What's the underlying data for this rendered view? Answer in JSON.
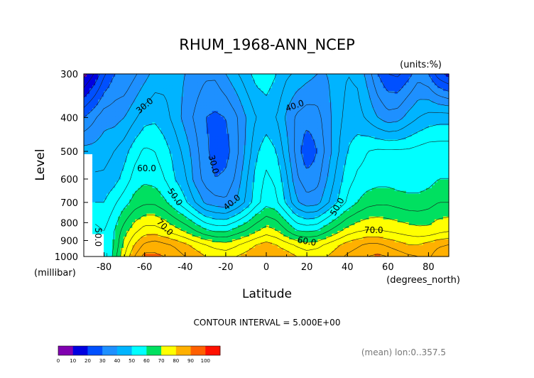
{
  "chart_data": {
    "type": "heatmap",
    "title": "RHUM_1968-ANN_NCEP",
    "units_label": "(units:%)",
    "xlabel": "Latitude",
    "x_unit_label": "(degrees_north)",
    "ylabel": "Level",
    "y_unit_label": "(millibar)",
    "xlim": [
      -90,
      90
    ],
    "ylim": [
      1000,
      300
    ],
    "x_ticks": [
      "-80",
      "-60",
      "-40",
      "-20",
      "0",
      "20",
      "40",
      "60",
      "80"
    ],
    "x_tick_values": [
      -80,
      -60,
      -40,
      -20,
      0,
      20,
      40,
      60,
      80
    ],
    "y_ticks": [
      "300",
      "400",
      "500",
      "600",
      "700",
      "800",
      "900",
      "1000"
    ],
    "y_tick_values": [
      300,
      400,
      500,
      600,
      700,
      800,
      900,
      1000
    ],
    "contour_interval_text": "CONTOUR INTERVAL = 5.000E+00",
    "footnote": "(mean) lon:0..357.5",
    "x": [
      -90,
      -85,
      -80,
      -75,
      -70,
      -65,
      -60,
      -55,
      -50,
      -45,
      -40,
      -35,
      -30,
      -25,
      -20,
      -15,
      -10,
      -5,
      0,
      5,
      10,
      15,
      20,
      25,
      30,
      35,
      40,
      45,
      50,
      55,
      60,
      65,
      70,
      75,
      80,
      85,
      90
    ],
    "levels": [
      1000,
      925,
      850,
      700,
      600,
      500,
      400,
      300
    ],
    "values": [
      [
        null,
        null,
        52,
        62,
        75,
        85,
        92,
        91,
        90,
        88,
        85,
        83,
        80,
        79,
        78,
        80,
        82,
        84,
        85,
        84,
        83,
        80,
        78,
        79,
        80,
        83,
        86,
        88,
        90,
        91,
        90,
        88,
        86,
        85,
        84,
        88,
        90
      ],
      [
        null,
        null,
        55,
        60,
        72,
        80,
        86,
        88,
        86,
        84,
        81,
        78,
        75,
        73,
        72,
        74,
        77,
        80,
        82,
        80,
        77,
        74,
        72,
        73,
        76,
        79,
        82,
        84,
        86,
        86,
        84,
        82,
        80,
        80,
        82,
        84,
        85
      ],
      [
        null,
        57,
        55,
        60,
        68,
        74,
        78,
        78,
        76,
        73,
        70,
        66,
        62,
        60,
        60,
        63,
        66,
        70,
        73,
        71,
        66,
        61,
        60,
        61,
        65,
        69,
        73,
        75,
        76,
        76,
        75,
        74,
        73,
        72,
        72,
        74,
        75
      ],
      [
        null,
        50,
        50,
        54,
        58,
        62,
        64,
        64,
        61,
        56,
        51,
        45,
        39,
        37,
        36,
        40,
        46,
        53,
        58,
        56,
        49,
        41,
        37,
        38,
        44,
        50,
        56,
        60,
        63,
        64,
        64,
        63,
        62,
        62,
        63,
        65,
        65
      ],
      [
        null,
        46,
        46,
        48,
        52,
        57,
        59,
        58,
        55,
        50,
        46,
        38,
        33,
        30,
        31,
        36,
        44,
        52,
        56,
        54,
        46,
        36,
        32,
        33,
        40,
        47,
        53,
        56,
        57,
        58,
        58,
        57,
        57,
        57,
        58,
        60,
        60
      ],
      [
        42,
        42,
        43,
        45,
        48,
        53,
        56,
        55,
        52,
        48,
        43,
        37,
        31,
        28,
        28,
        33,
        41,
        49,
        53,
        50,
        42,
        33,
        26,
        30,
        37,
        44,
        50,
        53,
        55,
        56,
        56,
        56,
        56,
        57,
        58,
        58,
        58
      ],
      [
        30,
        34,
        38,
        38,
        40,
        44,
        48,
        49,
        47,
        43,
        38,
        34,
        30,
        29,
        30,
        34,
        40,
        45,
        47,
        45,
        39,
        34,
        32,
        33,
        38,
        43,
        47,
        47,
        44,
        40,
        37,
        38,
        42,
        45,
        47,
        48,
        48
      ],
      [
        8,
        15,
        24,
        30,
        30,
        34,
        38,
        42,
        43,
        42,
        40,
        38,
        36,
        36,
        40,
        44,
        48,
        52,
        53,
        50,
        46,
        44,
        42,
        40,
        40,
        42,
        45,
        44,
        38,
        30,
        25,
        24,
        28,
        33,
        30,
        22,
        18
      ]
    ],
    "color_levels": [
      0,
      10,
      20,
      30,
      40,
      50,
      60,
      70,
      80,
      90,
      100
    ],
    "color_labels": [
      "0",
      "10",
      "20",
      "30",
      "40",
      "50",
      "60",
      "70",
      "80",
      "90",
      "100"
    ],
    "colors": [
      "#8000b0",
      "#0000e0",
      "#0050ff",
      "#1e90ff",
      "#00b4ff",
      "#00ffff",
      "#00e060",
      "#ffff00",
      "#ffb000",
      "#ff6000",
      "#ff1000"
    ],
    "contour_labels": [
      {
        "text": "30.0",
        "x": -60,
        "y": 370,
        "angle": -40
      },
      {
        "text": "60.0",
        "x": -59,
        "y": 560,
        "angle": 0
      },
      {
        "text": "50.0",
        "x": -45,
        "y": 675,
        "angle": 55
      },
      {
        "text": "70.0",
        "x": -50,
        "y": 825,
        "angle": 45
      },
      {
        "text": "50.0",
        "x": -83,
        "y": 880,
        "angle": 90
      },
      {
        "text": "30.0",
        "x": -26,
        "y": 545,
        "angle": 75
      },
      {
        "text": "40.0",
        "x": -17,
        "y": 700,
        "angle": -40
      },
      {
        "text": "40.0",
        "x": 14,
        "y": 370,
        "angle": -20
      },
      {
        "text": "50.0",
        "x": 35,
        "y": 720,
        "angle": -60
      },
      {
        "text": "60.0",
        "x": 20,
        "y": 905,
        "angle": 10
      },
      {
        "text": "70.0",
        "x": 53,
        "y": 840,
        "angle": 0
      }
    ]
  }
}
